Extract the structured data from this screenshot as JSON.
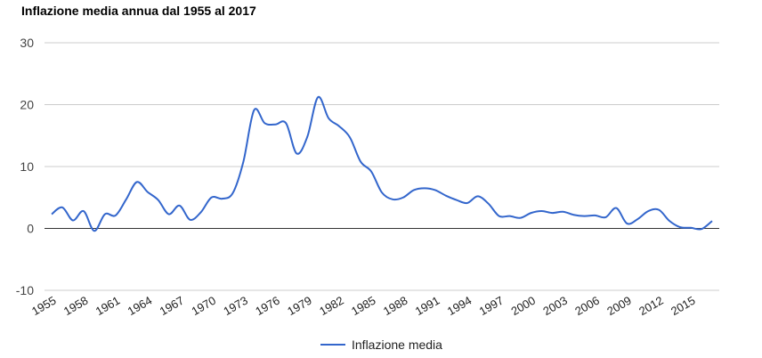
{
  "chart_data": {
    "type": "line",
    "title": "Inflazione media annua dal 1955 al 2017",
    "xlabel": "",
    "ylabel": "",
    "ylim": [
      -10,
      30
    ],
    "yticks": [
      "-10",
      "0",
      "10",
      "20",
      "30"
    ],
    "xticks": [
      "1955",
      "1958",
      "1961",
      "1964",
      "1967",
      "1970",
      "1973",
      "1976",
      "1979",
      "1982",
      "1985",
      "1988",
      "1991",
      "1994",
      "1997",
      "2000",
      "2003",
      "2006",
      "2009",
      "2012",
      "2015"
    ],
    "legend_position": "bottom",
    "grid": true,
    "color": "#3366cc",
    "series": [
      {
        "name": "Inflazione media",
        "x": [
          1955,
          1956,
          1957,
          1958,
          1959,
          1960,
          1961,
          1962,
          1963,
          1964,
          1965,
          1966,
          1967,
          1968,
          1969,
          1970,
          1971,
          1972,
          1973,
          1974,
          1975,
          1976,
          1977,
          1978,
          1979,
          1980,
          1981,
          1982,
          1983,
          1984,
          1985,
          1986,
          1987,
          1988,
          1989,
          1990,
          1991,
          1992,
          1993,
          1994,
          1995,
          1996,
          1997,
          1998,
          1999,
          2000,
          2001,
          2002,
          2003,
          2004,
          2005,
          2006,
          2007,
          2008,
          2009,
          2010,
          2011,
          2012,
          2013,
          2014,
          2015,
          2016,
          2017
        ],
        "values": [
          2.3,
          3.4,
          1.3,
          2.8,
          -0.4,
          2.3,
          2.1,
          4.7,
          7.5,
          5.9,
          4.6,
          2.3,
          3.7,
          1.4,
          2.6,
          5.0,
          4.8,
          5.7,
          10.8,
          19.1,
          17.0,
          16.8,
          17.0,
          12.1,
          14.8,
          21.2,
          17.8,
          16.5,
          14.7,
          10.8,
          9.2,
          5.8,
          4.7,
          5.0,
          6.2,
          6.5,
          6.2,
          5.3,
          4.6,
          4.1,
          5.2,
          4.0,
          2.0,
          2.0,
          1.7,
          2.5,
          2.8,
          2.5,
          2.7,
          2.2,
          2.0,
          2.1,
          1.8,
          3.3,
          0.8,
          1.5,
          2.8,
          3.0,
          1.2,
          0.2,
          0.1,
          -0.1,
          1.2
        ]
      }
    ]
  }
}
